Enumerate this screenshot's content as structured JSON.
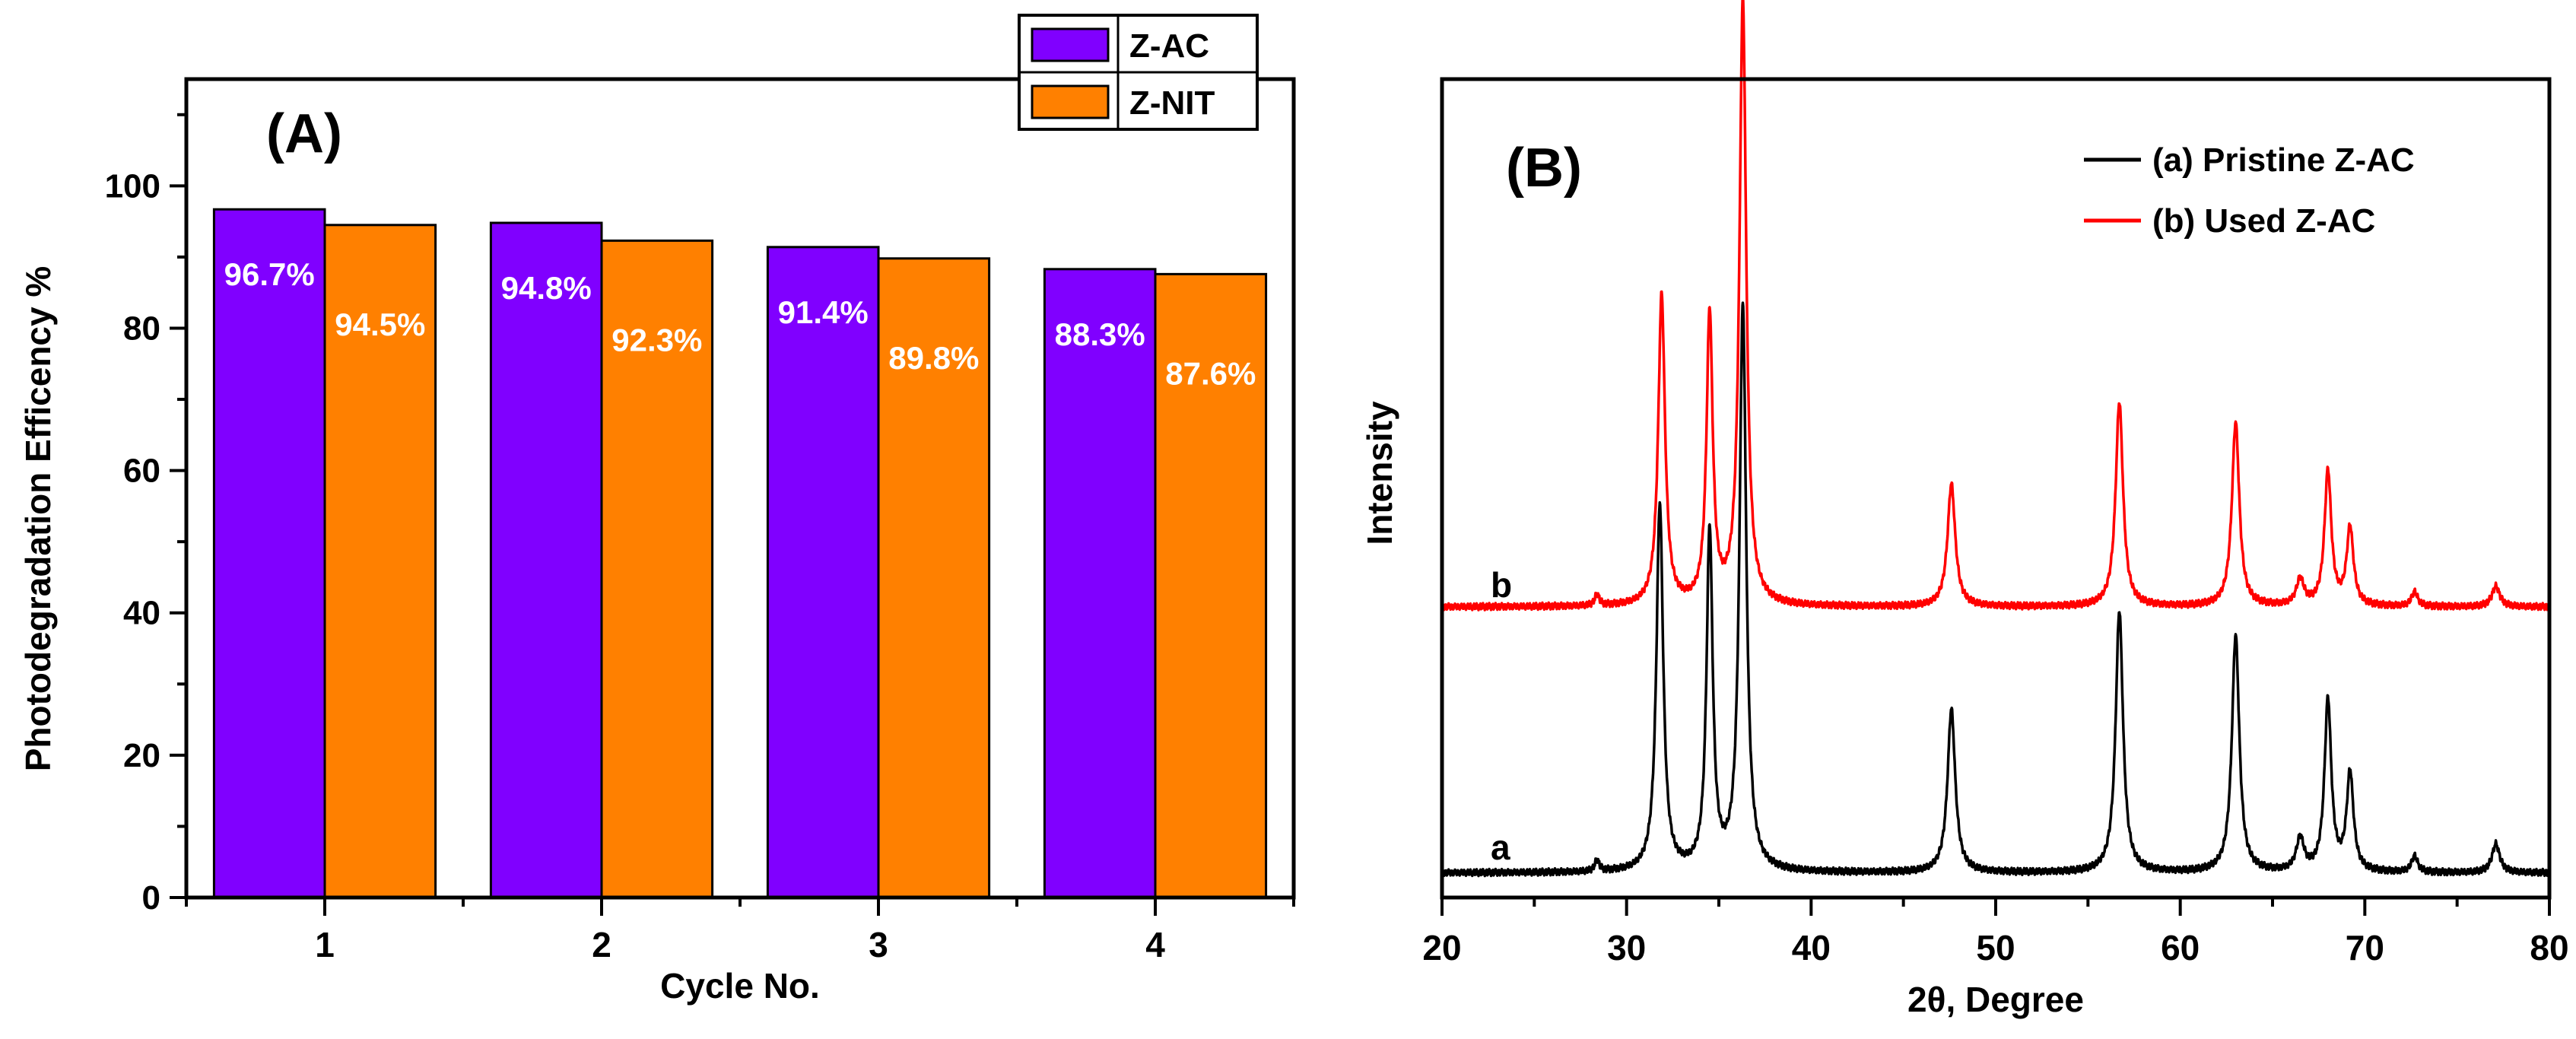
{
  "chart_data": [
    {
      "type": "bar",
      "panel_label": "(A)",
      "title": "",
      "xlabel": "Cycle No.",
      "ylabel": "Photodegradation Efficency %",
      "categories": [
        "1",
        "2",
        "3",
        "4"
      ],
      "ylim": [
        0,
        115
      ],
      "yticks": [
        0,
        20,
        40,
        60,
        80,
        100
      ],
      "series": [
        {
          "name": "Z-AC",
          "color": "#8000ff",
          "values": [
            96.7,
            94.8,
            91.4,
            88.3
          ],
          "labels": [
            "96.7%",
            "94.8%",
            "91.4%",
            "88.3%"
          ]
        },
        {
          "name": "Z-NIT",
          "color": "#ff8000",
          "values": [
            94.5,
            92.3,
            89.8,
            87.6
          ],
          "labels": [
            "94.5%",
            "92.3%",
            "89.8%",
            "87.6%"
          ]
        }
      ],
      "legend": {
        "position": "top-right",
        "entries": [
          "Z-AC",
          "Z-NIT"
        ]
      },
      "grid": false
    },
    {
      "type": "line",
      "panel_label": "(B)",
      "title": "",
      "xlabel": "2θ, Degree",
      "ylabel": "Intensity",
      "xlim": [
        20,
        80
      ],
      "xticks": [
        20,
        30,
        40,
        50,
        60,
        70,
        80
      ],
      "ylim": [
        0,
        1000
      ],
      "y_ticks_shown": false,
      "grid": false,
      "legend": {
        "position": "top-right",
        "entries": [
          "(a) Pristine Z-AC",
          "(b) Used Z-AC"
        ]
      },
      "series": [
        {
          "name": "(a) Pristine Z-AC",
          "curve_label": "a",
          "color": "#000000",
          "baseline": 30,
          "peaks": [
            [
              28.4,
              14,
              0.14
            ],
            [
              31.8,
              450,
              0.22
            ],
            [
              34.5,
              415,
              0.2
            ],
            [
              36.3,
              690,
              0.22
            ],
            [
              47.6,
              200,
              0.25
            ],
            [
              56.7,
              320,
              0.24
            ],
            [
              63.0,
              290,
              0.24
            ],
            [
              66.5,
              40,
              0.25
            ],
            [
              68.0,
              210,
              0.22
            ],
            [
              69.2,
              120,
              0.22
            ],
            [
              72.7,
              20,
              0.2
            ],
            [
              77.1,
              35,
              0.25
            ]
          ]
        },
        {
          "name": "(b) Used Z-AC",
          "curve_label": "b",
          "color": "#ff0000",
          "baseline": 355,
          "peaks": [
            [
              28.4,
              14,
              0.14
            ],
            [
              31.9,
              380,
              0.22
            ],
            [
              34.5,
              355,
              0.2
            ],
            [
              36.3,
              740,
              0.22
            ],
            [
              47.6,
              150,
              0.25
            ],
            [
              56.7,
              250,
              0.24
            ],
            [
              63.0,
              225,
              0.24
            ],
            [
              66.5,
              32,
              0.25
            ],
            [
              68.0,
              165,
              0.22
            ],
            [
              69.2,
              95,
              0.22
            ],
            [
              72.7,
              18,
              0.2
            ],
            [
              77.1,
              25,
              0.25
            ]
          ]
        }
      ]
    }
  ]
}
